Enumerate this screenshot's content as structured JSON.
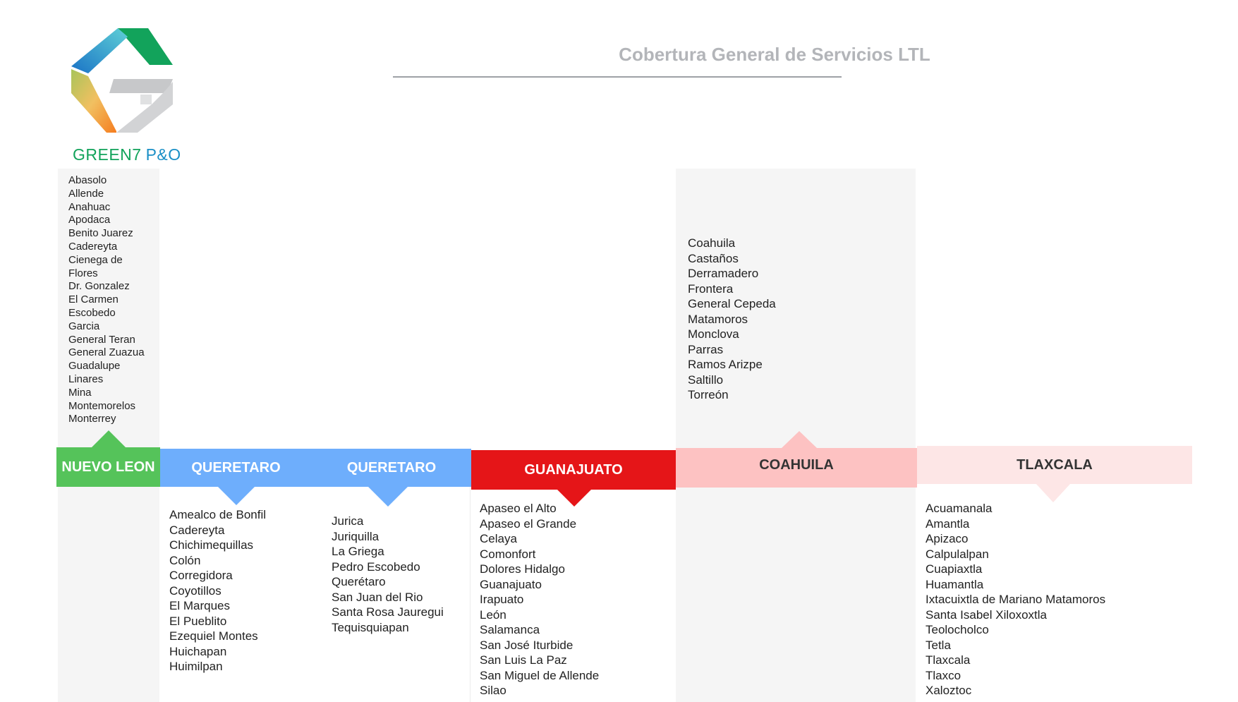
{
  "title": "Cobertura General de Servicios LTL",
  "logo": {
    "brand_green": "GREEN7",
    "brand_blue": "P&O",
    "colors": {
      "green": "#12a35b",
      "blue": "#1a8fc6",
      "gray": "#c9cacc",
      "orange": "#f2901e"
    }
  },
  "regions": [
    {
      "name": "NUEVO LEON",
      "color": "#55c35a",
      "text_color": "#ffffff",
      "cities": [
        "Abasolo",
        "Allende",
        "Anahuac",
        "Apodaca",
        "Benito Juarez",
        "Cadereyta",
        "Cienega de",
        "Flores",
        "Dr. Gonzalez",
        "El Carmen",
        "Escobedo",
        "Garcia",
        "General Teran",
        "General Zuazua",
        "Guadalupe",
        "Linares",
        "Mina",
        "Montemorelos",
        "Monterrey"
      ]
    },
    {
      "name": "QUERETARO",
      "color": "#6eaefc",
      "text_color": "#ffffff",
      "cities": [
        "Amealco de Bonfil",
        "Cadereyta",
        "Chichimequillas",
        "Colón",
        "Corregidora",
        "Coyotillos",
        "El Marques",
        "El Pueblito",
        "Ezequiel Montes",
        "Huichapan",
        "Huimilpan"
      ]
    },
    {
      "name": "QUERETARO",
      "color": "#6eaefc",
      "text_color": "#ffffff",
      "cities": [
        "Jurica",
        "Juriquilla",
        "La Griega",
        "Pedro Escobedo",
        "Querétaro",
        "San Juan del Rio",
        "Santa Rosa Jauregui",
        "Tequisquiapan"
      ]
    },
    {
      "name": "GUANAJUATO",
      "color": "#e51518",
      "text_color": "#ffffff",
      "cities": [
        "Apaseo el Alto",
        "Apaseo el Grande",
        "Celaya",
        "Comonfort",
        "Dolores Hidalgo",
        "Guanajuato",
        "Irapuato",
        "León",
        "Salamanca",
        "San José Iturbide",
        "San Luis La Paz",
        "San Miguel de Allende",
        "Silao"
      ]
    },
    {
      "name": "COAHUILA",
      "color": "#fdc2c2",
      "text_color": "#333333",
      "cities": [
        "Coahuila",
        "Castaños",
        "Derramadero",
        "Frontera",
        "General Cepeda",
        "Matamoros",
        "Monclova",
        "Parras",
        "Ramos Arizpe",
        "Saltillo",
        "Torreón"
      ]
    },
    {
      "name": "TLAXCALA",
      "color": "#fde6e6",
      "text_color": "#333333",
      "cities": [
        "Acuamanala",
        "Amantla",
        "Apizaco",
        "Calpulalpan",
        "Cuapiaxtla",
        "Huamantla",
        "Ixtacuixtla de Mariano Matamoros",
        "Santa Isabel Xiloxoxtla",
        "Teolocholco",
        "Tetla",
        "Tlaxcala",
        "Tlaxco",
        "Xaloztoc"
      ]
    }
  ]
}
